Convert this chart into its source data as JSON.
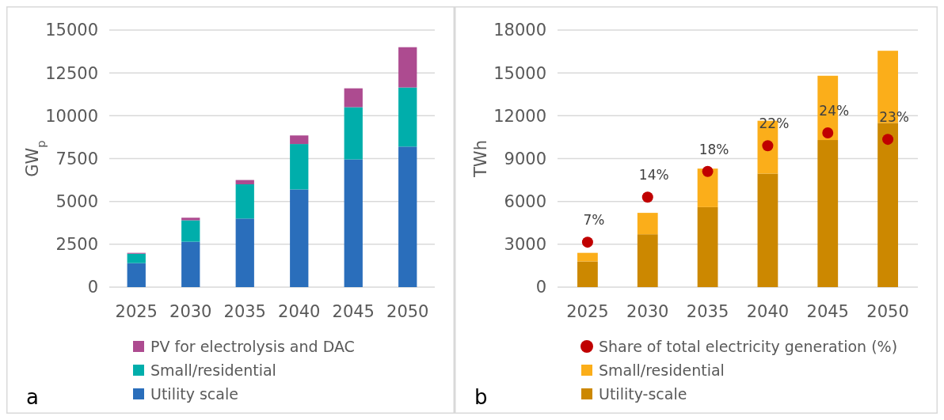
{
  "chart_data": [
    {
      "type": "bar",
      "stacked": true,
      "categories": [
        "2025",
        "2030",
        "2035",
        "2040",
        "2045",
        "2050"
      ],
      "ylabel": "GW$_{p}$",
      "ylim": [
        0,
        15000
      ],
      "yticks": [
        0,
        2500,
        5000,
        7500,
        10000,
        12500,
        15000
      ],
      "grid": "y",
      "legend": "bottom",
      "annotations": [
        "a"
      ],
      "series": [
        {
          "name": "Utility scale",
          "color": "#2a6ebb",
          "values": [
            1400,
            2650,
            4000,
            5700,
            7450,
            8200
          ]
        },
        {
          "name": "Small/residential",
          "color": "#00aeab",
          "values": [
            550,
            1250,
            2000,
            2650,
            3050,
            3450
          ]
        },
        {
          "name": "PV for electrolysis and DAC",
          "color": "#ad4b90",
          "values": [
            50,
            150,
            250,
            500,
            1100,
            2350
          ]
        }
      ]
    },
    {
      "type": "bar",
      "stacked": true,
      "categories": [
        "2025",
        "2030",
        "2035",
        "2040",
        "2045",
        "2050"
      ],
      "ylabel": "TWh",
      "ylim": [
        0,
        18000
      ],
      "yticks": [
        0,
        3000,
        6000,
        9000,
        12000,
        15000,
        18000
      ],
      "y2lim": [
        0,
        40
      ],
      "tick_labels": "xy",
      "grid": "y",
      "legend": "bottom",
      "annotations": [
        "b"
      ],
      "series": [
        {
          "name": "Utility-scale",
          "color": "#cc8800",
          "values": [
            1800,
            3700,
            5600,
            7950,
            10300,
            11500
          ]
        },
        {
          "name": "Small/residential",
          "color": "#fbae1a",
          "values": [
            600,
            1500,
            2700,
            3700,
            4500,
            5050
          ]
        },
        {
          "name": "Share of total electricity generation (%)",
          "type": "scatter",
          "axis": "y2",
          "marker": "circle",
          "color": "#c00000",
          "values": [
            7,
            14,
            18,
            22,
            24,
            23
          ],
          "value_labels": [
            "7%",
            "14%",
            "18%",
            "22%",
            "24%",
            "23%"
          ]
        }
      ]
    }
  ]
}
